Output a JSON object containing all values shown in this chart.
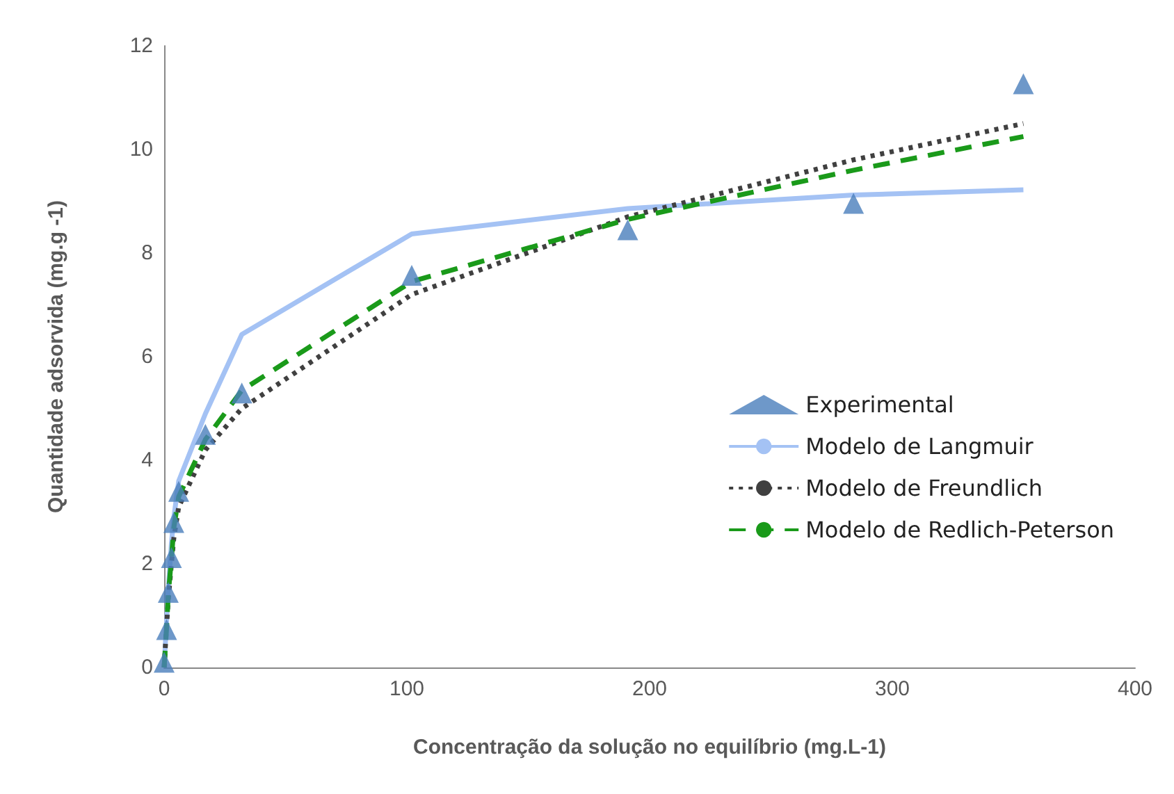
{
  "chart_data": {
    "type": "scatter",
    "xlabel": "Concentração da solução no equilíbrio (mg.L-1)",
    "ylabel": "Quantidade adsorvida (mg.g -1)",
    "x": [
      0,
      1,
      1.7,
      3,
      4,
      6,
      17,
      32,
      102,
      191,
      284,
      354
    ],
    "series": [
      {
        "name": "Experimental",
        "marker": "triangle",
        "color": "#4a7ebb",
        "values": [
          0.1,
          0.73,
          1.45,
          2.12,
          2.8,
          3.4,
          4.5,
          5.3,
          7.57,
          8.45,
          8.96,
          11.27
        ]
      },
      {
        "name": "Modelo de Langmuir",
        "type": "line",
        "line_style": "solid",
        "color": "#a4c2f4",
        "values": [
          0,
          0.9,
          1.5,
          2.4,
          2.9,
          3.6,
          4.9,
          6.43,
          8.37,
          8.86,
          9.12,
          9.22
        ]
      },
      {
        "name": "Modelo de Freundlich",
        "type": "line",
        "line_style": "dotted",
        "color": "#404040",
        "values": [
          0,
          0.8,
          1.3,
          2.0,
          2.5,
          3.1,
          4.2,
          5.0,
          7.2,
          8.7,
          9.8,
          10.5
        ]
      },
      {
        "name": "Modelo de Redlich-Peterson",
        "type": "line",
        "line_style": "dashed",
        "color": "#1a9a1a",
        "values": [
          0,
          0.75,
          1.4,
          2.1,
          2.7,
          3.3,
          4.4,
          5.35,
          7.45,
          8.65,
          9.6,
          10.25
        ]
      }
    ],
    "xlim": [
      0,
      400
    ],
    "xticks": [
      0,
      100,
      200,
      300,
      400
    ],
    "ylim": [
      0,
      12
    ],
    "yticks": [
      0,
      2,
      4,
      6,
      8,
      10,
      12
    ],
    "grid": false,
    "legend": "right"
  }
}
